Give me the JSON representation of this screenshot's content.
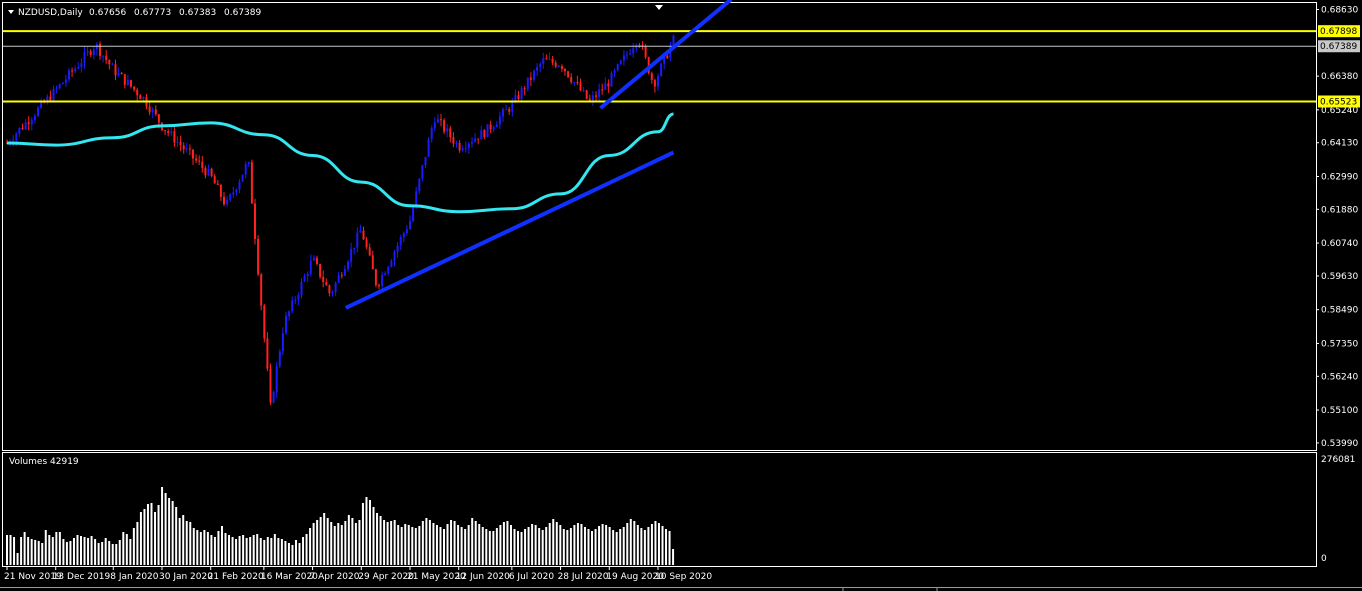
{
  "header": {
    "symbol": "NZDUSD,Daily",
    "open": "0.67656",
    "high": "0.67773",
    "low": "0.67383",
    "close": "0.67389"
  },
  "volume_panel": {
    "title": "Volumes 42919",
    "max_label": "276081",
    "zero_label": "0"
  },
  "colors": {
    "background": "#000000",
    "bull_candle": "#1a1aff",
    "bear_candle": "#ff2020",
    "moving_average": "#33e6f0",
    "trendline": "#1030ff",
    "horizontal_level": "#ffff00",
    "current_price_line": "#c8c8c8",
    "volume_bars": "#ffffff",
    "axis_text": "#ffffff"
  },
  "price_badges": {
    "upper_level": "0.67898",
    "current_price": "0.67389",
    "lower_level": "0.65523"
  },
  "chart_data": {
    "type": "candlestick",
    "symbol": "NZDUSD",
    "timeframe": "Daily",
    "grid": false,
    "y_ticks": [
      "0.68630",
      "0.67898",
      "0.67389",
      "0.66380",
      "0.65523",
      "0.65240",
      "0.64130",
      "0.62990",
      "0.61880",
      "0.60740",
      "0.59630",
      "0.58490",
      "0.57350",
      "0.56240",
      "0.55100",
      "0.53990"
    ],
    "x_ticks": [
      "21 Nov 2019",
      "13 Dec 2019",
      "8 Jan 2020",
      "30 Jan 2020",
      "21 Feb 2020",
      "16 Mar 2020",
      "7 Apr 2020",
      "29 Apr 2020",
      "21 May 2020",
      "12 Jun 2020",
      "6 Jul 2020",
      "28 Jul 2020",
      "19 Aug 2020",
      "10 Sep 2020"
    ],
    "ylim": [
      0.5375,
      0.6885
    ],
    "horizontal_levels": [
      0.67898,
      0.65523
    ],
    "current_price": 0.67389,
    "price_path_keypoints": [
      {
        "date": "21 Nov 2019",
        "close": 0.6412
      },
      {
        "date": "13 Dec 2019",
        "close": 0.659
      },
      {
        "date": "31 Dec 2019",
        "close": 0.6745
      },
      {
        "date": "8 Jan 2020",
        "close": 0.666
      },
      {
        "date": "22 Jan 2020",
        "close": 0.656
      },
      {
        "date": "30 Jan 2020",
        "close": 0.647
      },
      {
        "date": "21 Feb 2020",
        "close": 0.63
      },
      {
        "date": "28 Feb 2020",
        "close": 0.62
      },
      {
        "date": "9 Mar 2020",
        "close": 0.635
      },
      {
        "date": "19 Mar 2020",
        "close": 0.552
      },
      {
        "date": "25 Mar 2020",
        "close": 0.58
      },
      {
        "date": "7 Apr 2020",
        "close": 0.602
      },
      {
        "date": "15 Apr 2020",
        "close": 0.59
      },
      {
        "date": "29 Apr 2020",
        "close": 0.612
      },
      {
        "date": "6 May 2020",
        "close": 0.593
      },
      {
        "date": "21 May 2020",
        "close": 0.615
      },
      {
        "date": "1 Jun 2020",
        "close": 0.65
      },
      {
        "date": "12 Jun 2020",
        "close": 0.64
      },
      {
        "date": "24 Jun 2020",
        "close": 0.645
      },
      {
        "date": "6 Jul 2020",
        "close": 0.654
      },
      {
        "date": "20 Jul 2020",
        "close": 0.669
      },
      {
        "date": "28 Jul 2020",
        "close": 0.668
      },
      {
        "date": "10 Aug 2020",
        "close": 0.655
      },
      {
        "date": "19 Aug 2020",
        "close": 0.662
      },
      {
        "date": "1 Sep 2020",
        "close": 0.677
      },
      {
        "date": "8 Sep 2020",
        "close": 0.661
      },
      {
        "date": "17 Sep 2020",
        "close": 0.676
      }
    ],
    "moving_average": [
      {
        "date": "21 Nov 2019",
        "value": 0.6412
      },
      {
        "date": "13 Dec 2019",
        "value": 0.6405
      },
      {
        "date": "8 Jan 2020",
        "value": 0.643
      },
      {
        "date": "30 Jan 2020",
        "value": 0.647
      },
      {
        "date": "21 Feb 2020",
        "value": 0.648
      },
      {
        "date": "16 Mar 2020",
        "value": 0.644
      },
      {
        "date": "7 Apr 2020",
        "value": 0.637
      },
      {
        "date": "29 Apr 2020",
        "value": 0.628
      },
      {
        "date": "21 May 2020",
        "value": 0.62
      },
      {
        "date": "12 Jun 2020",
        "value": 0.618
      },
      {
        "date": "6 Jul 2020",
        "value": 0.619
      },
      {
        "date": "28 Jul 2020",
        "value": 0.624
      },
      {
        "date": "19 Aug 2020",
        "value": 0.637
      },
      {
        "date": "10 Sep 2020",
        "value": 0.645
      },
      {
        "date": "17 Sep 2020",
        "value": 0.651
      }
    ],
    "trendlines": [
      {
        "name": "support-lower",
        "from": {
          "date": "22 Apr 2020",
          "price": 0.5855
        },
        "to": {
          "date": "17 Sep 2020",
          "price": 0.638
        }
      },
      {
        "name": "support-upper",
        "from": {
          "date": "15 Aug 2020",
          "price": 0.653
        },
        "to": {
          "date": "13 Oct 2020",
          "price": 0.6897
        }
      }
    ],
    "volumes": [
      0.3,
      0.3,
      0.28,
      0.12,
      0.28,
      0.33,
      0.28,
      0.26,
      0.25,
      0.24,
      0.22,
      0.35,
      0.3,
      0.28,
      0.33,
      0.33,
      0.26,
      0.23,
      0.24,
      0.27,
      0.3,
      0.29,
      0.28,
      0.27,
      0.29,
      0.26,
      0.22,
      0.23,
      0.27,
      0.24,
      0.21,
      0.21,
      0.25,
      0.33,
      0.31,
      0.26,
      0.37,
      0.43,
      0.53,
      0.56,
      0.61,
      0.62,
      0.53,
      0.6,
      0.78,
      0.72,
      0.67,
      0.64,
      0.58,
      0.47,
      0.5,
      0.44,
      0.43,
      0.37,
      0.35,
      0.33,
      0.35,
      0.33,
      0.3,
      0.28,
      0.34,
      0.39,
      0.32,
      0.3,
      0.28,
      0.26,
      0.29,
      0.3,
      0.27,
      0.28,
      0.3,
      0.31,
      0.27,
      0.25,
      0.28,
      0.27,
      0.31,
      0.27,
      0.26,
      0.24,
      0.22,
      0.2,
      0.25,
      0.22,
      0.28,
      0.31,
      0.37,
      0.42,
      0.45,
      0.48,
      0.52,
      0.47,
      0.43,
      0.39,
      0.42,
      0.4,
      0.44,
      0.5,
      0.47,
      0.42,
      0.45,
      0.62,
      0.68,
      0.65,
      0.58,
      0.52,
      0.49,
      0.45,
      0.43,
      0.44,
      0.45,
      0.4,
      0.38,
      0.41,
      0.4,
      0.38,
      0.37,
      0.39,
      0.44,
      0.47,
      0.45,
      0.42,
      0.4,
      0.38,
      0.36,
      0.41,
      0.45,
      0.44,
      0.4,
      0.38,
      0.36,
      0.4,
      0.47,
      0.44,
      0.41,
      0.38,
      0.36,
      0.34,
      0.34,
      0.37,
      0.4,
      0.43,
      0.44,
      0.4,
      0.36,
      0.34,
      0.33,
      0.36,
      0.38,
      0.41,
      0.4,
      0.37,
      0.35,
      0.38,
      0.42,
      0.46,
      0.43,
      0.4,
      0.36,
      0.35,
      0.37,
      0.4,
      0.42,
      0.41,
      0.38,
      0.36,
      0.34,
      0.36,
      0.39,
      0.41,
      0.4,
      0.38,
      0.35,
      0.33,
      0.36,
      0.38,
      0.42,
      0.46,
      0.44,
      0.4,
      0.37,
      0.35,
      0.38,
      0.41,
      0.44,
      0.42,
      0.39,
      0.36,
      0.34,
      0.16
    ]
  }
}
